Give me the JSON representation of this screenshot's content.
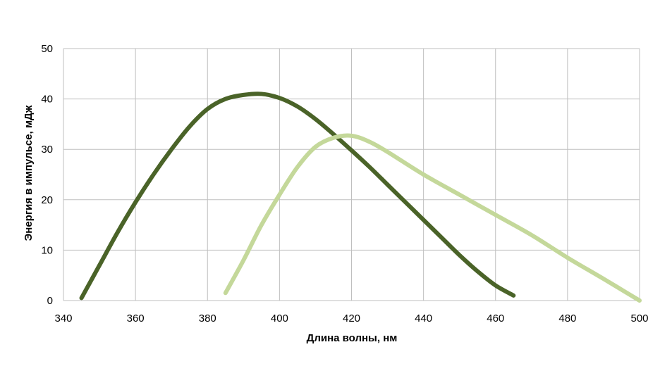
{
  "chart_data": {
    "type": "line",
    "title": "",
    "xlabel": "Длина волны, нм",
    "ylabel": "Энергия в импульсе, мДж",
    "xlim": [
      340,
      500
    ],
    "ylim": [
      0,
      50
    ],
    "x_ticks": [
      "340",
      "360",
      "380",
      "400",
      "420",
      "440",
      "460",
      "480",
      "500"
    ],
    "y_ticks": [
      "0",
      "10",
      "20",
      "30",
      "40",
      "50"
    ],
    "grid": true,
    "legend": "none",
    "series": [
      {
        "color": "#4a6328",
        "x": [
          345,
          350,
          355,
          360,
          365,
          370,
          375,
          380,
          385,
          390,
          395,
          400,
          405,
          410,
          415,
          420,
          425,
          430,
          435,
          440,
          445,
          450,
          455,
          460,
          465
        ],
        "y": [
          0.5,
          7,
          13.5,
          19.5,
          25,
          30,
          34.5,
          38,
          40,
          40.8,
          41,
          40.2,
          38.5,
          36,
          33,
          29.8,
          26.5,
          23,
          19.5,
          16,
          12.5,
          9,
          5.8,
          3,
          1
        ]
      },
      {
        "color": "#c4d89a",
        "x": [
          385,
          390,
          395,
          400,
          405,
          410,
          415,
          420,
          425,
          430,
          440,
          450,
          460,
          470,
          480,
          490,
          500
        ],
        "y": [
          1.5,
          8,
          15,
          21,
          26.5,
          30.5,
          32.3,
          32.7,
          31.5,
          29.5,
          25,
          21,
          17,
          13,
          8.5,
          4.3,
          0
        ]
      }
    ]
  }
}
